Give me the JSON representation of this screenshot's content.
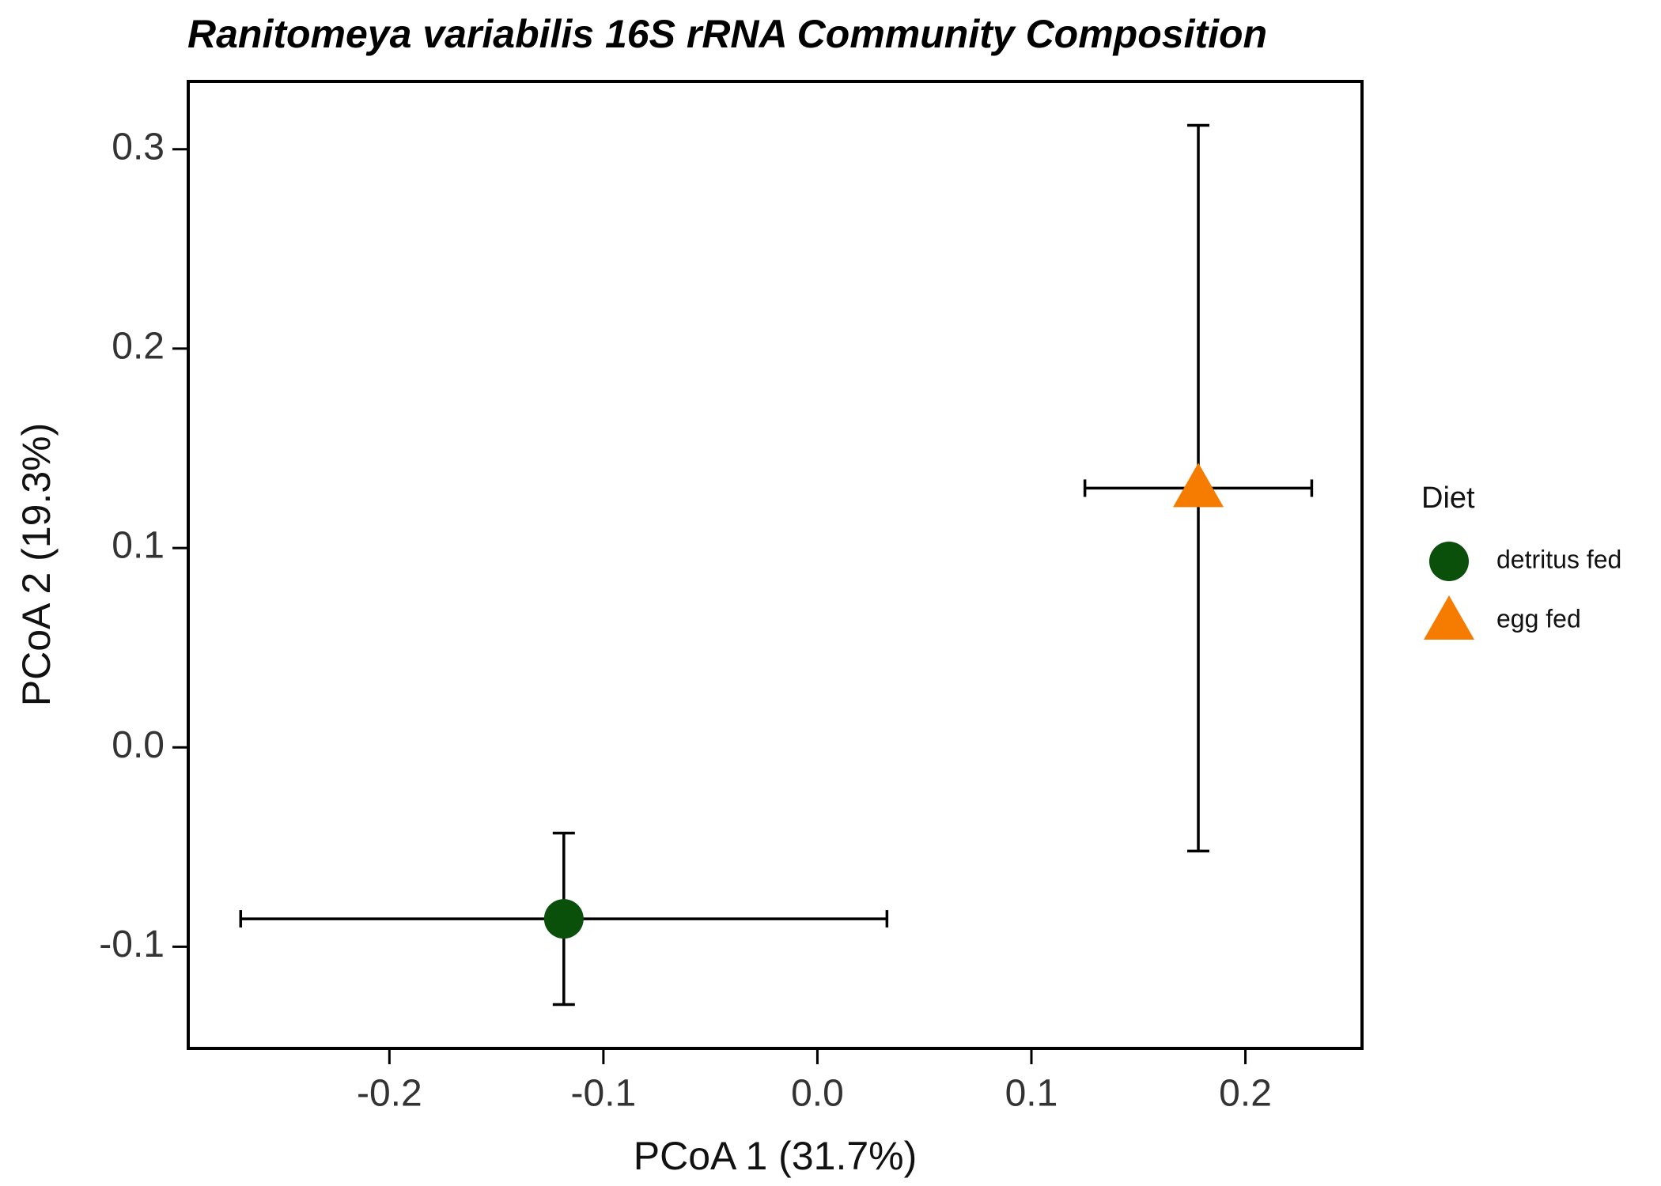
{
  "chart_data": {
    "type": "scatter",
    "title": "Ranitomeya variabilis 16S rRNA Community Composition",
    "x_label": "PCoA 1 (31.7%)",
    "y_label": "PCoA 2 (19.3%)",
    "legend_title": "Diet",
    "series": [
      {
        "name": "detritus fed",
        "color": "#0a4f0a",
        "marker": "circle",
        "x": [
          -0.1185
        ],
        "values": [
          -0.086
        ],
        "x_low": [
          -0.2695
        ],
        "x_high": [
          0.0325
        ],
        "y_low": [
          -0.129
        ],
        "y_high": [
          -0.043
        ]
      },
      {
        "name": "egg fed",
        "color": "#f57c00",
        "marker": "triangle",
        "x": [
          0.178
        ],
        "values": [
          0.13
        ],
        "x_low": [
          0.125
        ],
        "x_high": [
          0.231
        ],
        "y_low": [
          -0.052
        ],
        "y_high": [
          0.312
        ]
      }
    ],
    "xlim": [
      -0.294,
      0.2545
    ],
    "ylim": [
      -0.151,
      0.334
    ],
    "xticks": [
      -0.2,
      -0.1,
      {
        "value": 0,
        "label": "0.0"
      },
      0.1,
      0.2
    ],
    "yticks": [
      -0.1,
      {
        "value": 0,
        "label": "0.0"
      },
      0.1,
      0.2,
      0.3
    ]
  }
}
